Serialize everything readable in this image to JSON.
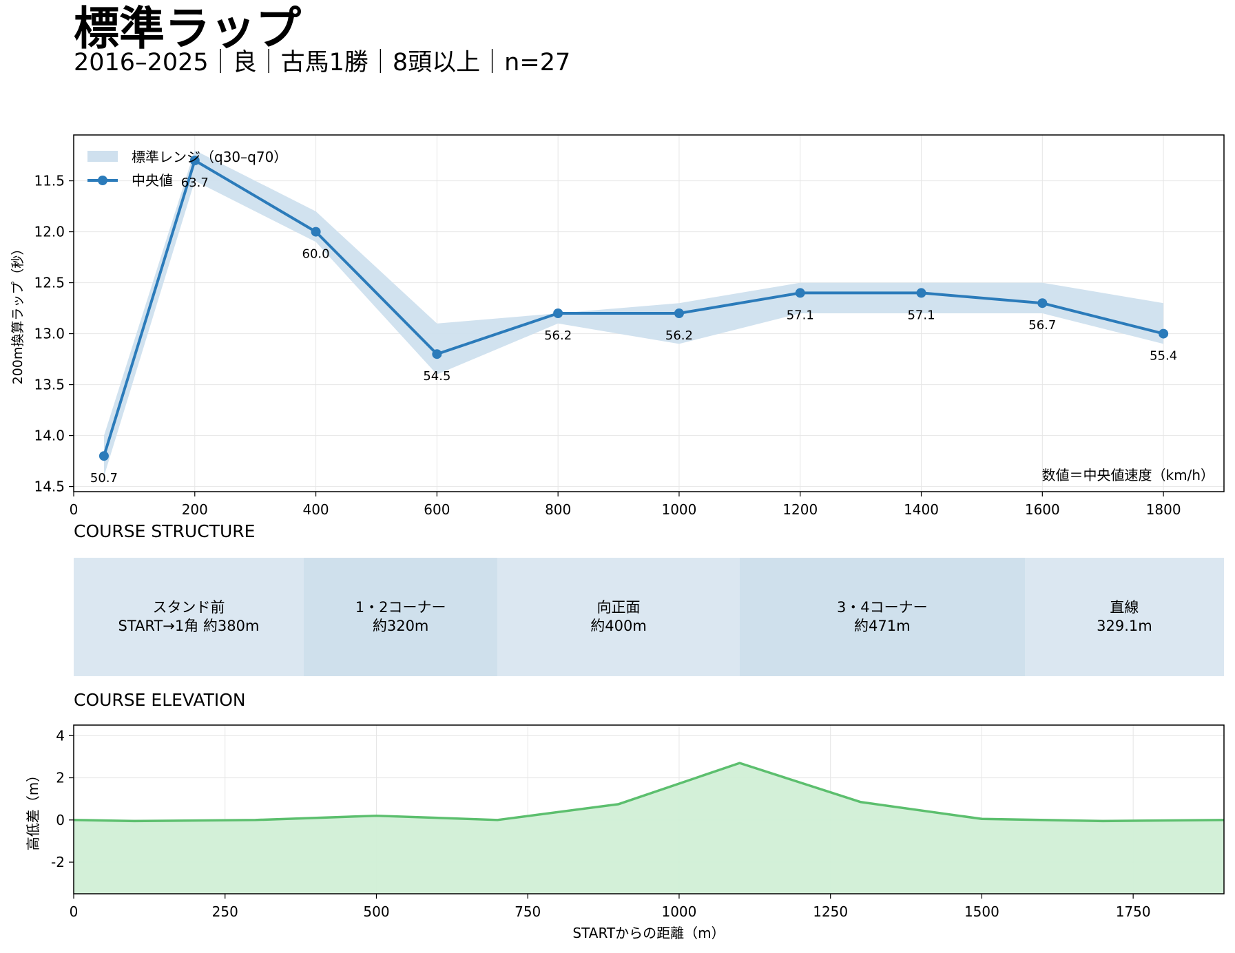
{
  "header": {
    "title": "標準ラップ",
    "subtitle": "2016–2025｜良｜古馬1勝｜8頭以上｜n=27"
  },
  "chart_data": [
    {
      "type": "line",
      "ylabel": "200m換算ラップ（秒）",
      "xlim": [
        0,
        1900
      ],
      "ylim": [
        14.55,
        11.05
      ],
      "y_inverted": true,
      "xticks": [
        0,
        200,
        400,
        600,
        800,
        1000,
        1200,
        1400,
        1600,
        1800
      ],
      "yticks": [
        11.5,
        12.0,
        12.5,
        13.0,
        13.5,
        14.0,
        14.5
      ],
      "grid": true,
      "legend": {
        "placement": "top-left",
        "entries": [
          {
            "label": "標準レンジ（q30–q70）",
            "kind": "band"
          },
          {
            "label": "中央値",
            "kind": "line"
          }
        ]
      },
      "annotation": "数値＝中央値速度（km/h）",
      "colors": {
        "median": "#2b7bba",
        "band": "#cfe0ee"
      },
      "series": [
        {
          "name": "中央値",
          "x": [
            50,
            200,
            400,
            600,
            800,
            1000,
            1200,
            1400,
            1600,
            1800
          ],
          "values": [
            14.2,
            11.3,
            12.0,
            13.2,
            12.8,
            12.8,
            12.6,
            12.6,
            12.7,
            13.0
          ],
          "speed_labels": [
            "50.7",
            "63.7",
            "60.0",
            "54.5",
            "56.2",
            "56.2",
            "57.1",
            "57.1",
            "56.7",
            "55.4"
          ]
        },
        {
          "name": "標準レンジ（q30–q70）",
          "x": [
            50,
            200,
            400,
            600,
            800,
            1000,
            1200,
            1400,
            1600,
            1800
          ],
          "low": [
            14.0,
            11.2,
            11.8,
            12.9,
            12.8,
            12.7,
            12.5,
            12.5,
            12.5,
            12.7
          ],
          "high": [
            14.4,
            11.5,
            12.1,
            13.4,
            12.9,
            13.1,
            12.8,
            12.8,
            12.8,
            13.1
          ]
        }
      ]
    },
    {
      "type": "area",
      "xlabel": "STARTからの距離（m）",
      "ylabel": "高低差（m）",
      "xlim": [
        0,
        1900
      ],
      "ylim": [
        -3.5,
        4.5
      ],
      "xticks": [
        0,
        250,
        500,
        750,
        1000,
        1250,
        1500,
        1750
      ],
      "yticks": [
        4,
        2,
        0,
        -2
      ],
      "grid": true,
      "colors": {
        "line": "#5cbf6e",
        "fill": "#d1efd6"
      },
      "series": [
        {
          "x": [
            0,
            100,
            300,
            500,
            700,
            900,
            1100,
            1300,
            1500,
            1700,
            1900
          ],
          "values": [
            0.0,
            -0.05,
            0.0,
            0.2,
            0.0,
            0.75,
            2.7,
            0.85,
            0.05,
            -0.05,
            0.0
          ]
        }
      ]
    }
  ],
  "course_structure": {
    "heading": "COURSE STRUCTURE",
    "colors": {
      "light": "#dbe7f1",
      "dark": "#cfe0ec"
    },
    "segments": [
      {
        "label": "スタンド前\nSTART→1角 約380m",
        "from": 0,
        "to": 380,
        "shade": "light"
      },
      {
        "label": "1・2コーナー\n約320m",
        "from": 380,
        "to": 700,
        "shade": "dark"
      },
      {
        "label": "向正面\n約400m",
        "from": 700,
        "to": 1100,
        "shade": "light"
      },
      {
        "label": "3・4コーナー\n約471m",
        "from": 1100,
        "to": 1571,
        "shade": "dark"
      },
      {
        "label": "直線\n329.1m",
        "from": 1571,
        "to": 1900,
        "shade": "light"
      }
    ]
  },
  "course_elevation": {
    "heading": "COURSE ELEVATION"
  }
}
